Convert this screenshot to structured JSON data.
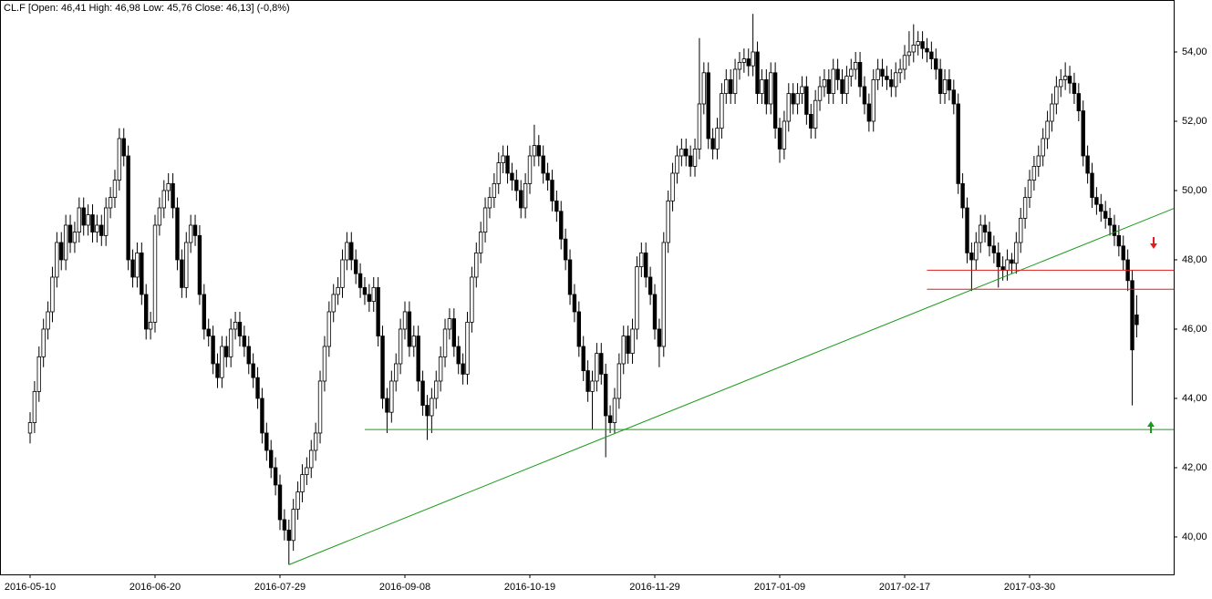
{
  "chart_data": {
    "type": "candlestick",
    "title": "CL.F [Open: 46,41  High: 46,98  Low: 45,76  Close: 46,13]  (-0,8%)",
    "categories": [
      "2016-05-10",
      null,
      null,
      null,
      null,
      null,
      null,
      null,
      null,
      null,
      null,
      null,
      null,
      null,
      null,
      null,
      null,
      null,
      null,
      null,
      null,
      null,
      null,
      null,
      null,
      null,
      null,
      null,
      "2016-06-20",
      null,
      null,
      null,
      null,
      null,
      null,
      null,
      null,
      null,
      null,
      null,
      null,
      null,
      null,
      null,
      null,
      null,
      null,
      null,
      null,
      null,
      null,
      null,
      null,
      null,
      null,
      null,
      "2016-07-29",
      null,
      null,
      null,
      null,
      null,
      null,
      null,
      null,
      null,
      null,
      null,
      null,
      null,
      null,
      null,
      null,
      null,
      null,
      null,
      null,
      null,
      null,
      null,
      null,
      null,
      null,
      null,
      "2016-09-08",
      null,
      null,
      null,
      null,
      null,
      null,
      null,
      null,
      null,
      null,
      null,
      null,
      null,
      null,
      null,
      null,
      null,
      null,
      null,
      null,
      null,
      null,
      null,
      null,
      null,
      null,
      null,
      "2016-10-19",
      null,
      null,
      null,
      null,
      null,
      null,
      null,
      null,
      null,
      null,
      null,
      null,
      null,
      null,
      null,
      null,
      null,
      null,
      null,
      null,
      null,
      null,
      null,
      null,
      null,
      null,
      null,
      "2016-11-29",
      null,
      null,
      null,
      null,
      null,
      null,
      null,
      null,
      null,
      null,
      null,
      null,
      null,
      null,
      null,
      null,
      null,
      null,
      null,
      null,
      null,
      null,
      null,
      null,
      null,
      null,
      null,
      "2017-01-09",
      null,
      null,
      null,
      null,
      null,
      null,
      null,
      null,
      null,
      null,
      null,
      null,
      null,
      null,
      null,
      null,
      null,
      null,
      null,
      null,
      null,
      null,
      null,
      null,
      null,
      null,
      null,
      "2017-02-17",
      null,
      null,
      null,
      null,
      null,
      null,
      null,
      null,
      null,
      null,
      null,
      null,
      null,
      null,
      null,
      null,
      null,
      null,
      null,
      null,
      null,
      null,
      null,
      null,
      null,
      null,
      null,
      "2017-03-30",
      null,
      null,
      null,
      null,
      null,
      null,
      null,
      null,
      null,
      null,
      null,
      null,
      null,
      null,
      null,
      null,
      null,
      null,
      null,
      null,
      null,
      null,
      null,
      null
    ],
    "open": [
      43.0,
      43.3,
      44.2,
      45.2,
      46.0,
      46.5,
      47.5,
      48.5,
      48.0,
      49.0,
      48.5,
      48.8,
      49.5,
      49.0,
      49.3,
      48.8,
      49.0,
      48.7,
      49.5,
      49.8,
      50.3,
      51.5,
      51.0,
      48.0,
      47.5,
      48.2,
      47.0,
      46.0,
      46.2,
      49.0,
      49.5,
      50.0,
      50.2,
      49.5,
      48.0,
      47.2,
      48.5,
      49.0,
      48.7,
      47.0,
      46.0,
      45.8,
      45.0,
      44.6,
      45.5,
      45.2,
      46.0,
      46.2,
      45.8,
      45.5,
      45.0,
      44.6,
      44.0,
      43.0,
      42.5,
      42.0,
      41.5,
      40.5,
      40.2,
      39.9,
      40.8,
      41.3,
      41.8,
      42.0,
      42.5,
      43.0,
      44.5,
      45.5,
      46.5,
      47.0,
      47.2,
      48.0,
      48.5,
      48.0,
      47.6,
      47.2,
      47.0,
      46.8,
      47.2,
      45.8,
      44.0,
      43.6,
      44.5,
      45.0,
      46.0,
      46.5,
      45.5,
      45.8,
      44.5,
      43.8,
      43.5,
      44.0,
      44.5,
      45.2,
      46.0,
      46.3,
      45.5,
      45.0,
      44.7,
      46.2,
      47.5,
      48.2,
      48.8,
      49.5,
      49.8,
      50.2,
      50.8,
      51.0,
      50.5,
      50.3,
      50.0,
      49.5,
      50.2,
      51.0,
      51.3,
      51.0,
      50.5,
      50.3,
      49.7,
      49.4,
      48.6,
      48.0,
      47.0,
      46.5,
      45.5,
      44.8,
      44.2,
      44.5,
      45.3,
      44.7,
      43.5,
      43.3,
      44.0,
      45.0,
      45.8,
      45.3,
      46.0,
      47.8,
      48.2,
      47.5,
      47.0,
      46.0,
      45.5,
      48.5,
      49.7,
      50.5,
      51.0,
      51.2,
      51.0,
      50.7,
      51.2,
      52.5,
      53.4,
      51.5,
      51.2,
      51.8,
      52.8,
      53.2,
      52.8,
      53.5,
      53.7,
      53.8,
      53.6,
      54.0,
      52.8,
      53.2,
      52.5,
      53.4,
      51.8,
      51.2,
      52.0,
      52.8,
      52.5,
      52.8,
      53.0,
      52.2,
      51.8,
      52.6,
      53.0,
      53.2,
      52.8,
      53.5,
      53.2,
      52.8,
      53.3,
      53.5,
      53.7,
      53.0,
      52.5,
      52.0,
      53.2,
      53.5,
      53.3,
      53.2,
      53.0,
      53.4,
      53.5,
      53.9,
      54.0,
      54.2,
      54.3,
      54.1,
      54.0,
      53.8,
      53.5,
      52.8,
      53.2,
      52.9,
      52.5,
      50.2,
      49.5,
      48.2,
      48.0,
      48.5,
      49.0,
      48.8,
      48.4,
      48.2,
      47.8,
      47.7,
      48.0,
      47.9,
      48.5,
      49.2,
      49.8,
      50.3,
      50.7,
      51.0,
      51.5,
      52.0,
      52.5,
      53.0,
      53.2,
      53.3,
      53.1,
      52.8,
      52.3,
      51.0,
      50.5,
      49.8,
      49.6,
      49.4,
      49.2,
      49.0,
      48.7,
      48.4,
      48.0,
      47.4,
      46.41
    ],
    "high": [
      43.6,
      44.5,
      45.5,
      46.3,
      46.8,
      47.8,
      48.8,
      48.8,
      49.3,
      49.3,
      49.1,
      49.8,
      49.8,
      49.6,
      49.6,
      49.3,
      49.3,
      49.8,
      50.1,
      50.6,
      51.8,
      51.8,
      51.3,
      48.3,
      48.5,
      48.5,
      47.3,
      46.5,
      49.3,
      49.8,
      50.3,
      50.5,
      50.5,
      49.8,
      48.3,
      48.8,
      49.3,
      49.3,
      49.0,
      47.3,
      46.3,
      46.1,
      45.3,
      45.8,
      45.8,
      46.3,
      46.5,
      46.5,
      46.1,
      45.8,
      45.3,
      44.9,
      44.3,
      43.3,
      42.8,
      42.3,
      41.8,
      40.8,
      40.5,
      41.1,
      41.6,
      42.1,
      42.3,
      42.8,
      43.3,
      44.8,
      45.8,
      46.8,
      47.3,
      47.5,
      48.3,
      48.8,
      48.8,
      48.3,
      47.9,
      47.5,
      47.3,
      47.5,
      47.5,
      46.1,
      44.3,
      44.8,
      45.3,
      46.3,
      46.8,
      46.8,
      46.1,
      46.1,
      44.8,
      44.1,
      44.3,
      44.8,
      45.5,
      46.3,
      46.6,
      46.6,
      45.8,
      45.3,
      46.5,
      47.8,
      48.5,
      49.1,
      49.8,
      50.1,
      50.5,
      51.1,
      51.3,
      51.3,
      50.8,
      50.6,
      50.3,
      50.5,
      51.3,
      51.9,
      51.6,
      51.3,
      50.8,
      50.6,
      50.0,
      49.7,
      48.9,
      48.3,
      47.3,
      46.8,
      45.8,
      45.1,
      44.8,
      45.6,
      45.6,
      45.0,
      43.8,
      44.3,
      45.3,
      46.1,
      46.1,
      46.3,
      48.1,
      48.5,
      48.5,
      47.8,
      47.3,
      46.3,
      48.8,
      50.0,
      50.8,
      51.3,
      51.5,
      51.5,
      51.3,
      51.5,
      54.4,
      53.7,
      53.7,
      51.8,
      52.1,
      53.1,
      53.5,
      53.5,
      53.8,
      54.0,
      54.1,
      54.1,
      55.1,
      54.3,
      53.5,
      53.5,
      53.7,
      53.7,
      52.1,
      52.3,
      53.1,
      53.1,
      53.1,
      53.3,
      53.3,
      52.5,
      52.9,
      53.3,
      53.5,
      53.5,
      53.8,
      53.8,
      53.5,
      53.6,
      53.8,
      54.0,
      54.0,
      53.3,
      52.8,
      53.5,
      53.8,
      53.8,
      53.6,
      53.5,
      53.7,
      53.8,
      54.2,
      54.6,
      54.8,
      54.6,
      54.6,
      54.4,
      54.3,
      54.1,
      53.8,
      53.5,
      53.5,
      53.2,
      52.8,
      50.5,
      49.8,
      48.5,
      48.8,
      49.3,
      49.3,
      49.1,
      48.7,
      48.5,
      48.1,
      48.3,
      48.2,
      48.8,
      49.5,
      50.1,
      50.6,
      51.0,
      51.3,
      51.8,
      52.3,
      52.8,
      53.3,
      53.5,
      53.7,
      53.6,
      53.4,
      53.1,
      52.6,
      51.3,
      50.8,
      50.1,
      49.9,
      49.7,
      49.5,
      49.3,
      49.0,
      48.7,
      48.3,
      47.7,
      46.98
    ],
    "low": [
      42.7,
      43.0,
      43.9,
      44.9,
      45.7,
      46.2,
      47.2,
      47.7,
      47.7,
      48.2,
      48.2,
      48.5,
      48.7,
      48.7,
      48.5,
      48.5,
      48.4,
      48.4,
      49.2,
      49.5,
      50.0,
      50.7,
      47.7,
      47.2,
      47.2,
      46.7,
      45.7,
      45.7,
      45.9,
      48.7,
      49.2,
      49.7,
      49.2,
      47.7,
      46.9,
      46.9,
      48.2,
      48.4,
      46.7,
      45.7,
      45.5,
      44.7,
      44.3,
      44.3,
      44.9,
      44.9,
      45.7,
      45.5,
      45.2,
      44.7,
      44.3,
      43.7,
      42.7,
      42.2,
      41.7,
      41.2,
      40.2,
      39.9,
      39.2,
      39.6,
      40.5,
      41.0,
      41.5,
      41.7,
      42.2,
      42.7,
      44.2,
      45.2,
      46.2,
      46.7,
      46.9,
      47.7,
      47.7,
      47.3,
      46.9,
      46.7,
      46.5,
      46.5,
      45.5,
      43.7,
      43.0,
      43.3,
      44.2,
      44.7,
      45.7,
      45.2,
      45.2,
      44.2,
      43.5,
      42.8,
      43.0,
      43.7,
      44.2,
      44.9,
      45.7,
      45.2,
      44.7,
      44.4,
      44.4,
      45.9,
      47.2,
      47.9,
      48.5,
      49.2,
      49.5,
      49.9,
      50.5,
      50.2,
      50.0,
      49.7,
      49.2,
      49.2,
      49.9,
      50.7,
      50.7,
      50.2,
      50.0,
      49.4,
      49.1,
      48.3,
      47.7,
      46.7,
      46.2,
      45.2,
      44.5,
      43.9,
      43.1,
      44.2,
      44.4,
      42.3,
      43.0,
      43.0,
      43.7,
      44.7,
      45.0,
      45.0,
      45.7,
      47.5,
      47.2,
      46.7,
      45.7,
      44.9,
      45.2,
      48.2,
      49.4,
      50.2,
      50.7,
      50.7,
      50.4,
      50.4,
      50.9,
      52.2,
      51.2,
      50.9,
      50.9,
      51.5,
      52.5,
      52.5,
      52.5,
      53.2,
      53.4,
      53.3,
      53.3,
      52.5,
      52.5,
      52.2,
      52.2,
      51.5,
      50.8,
      50.9,
      51.7,
      52.2,
      52.2,
      52.5,
      51.9,
      51.5,
      51.5,
      52.3,
      52.7,
      52.5,
      52.5,
      52.9,
      52.5,
      52.5,
      53.0,
      53.2,
      52.7,
      52.2,
      51.7,
      51.7,
      52.9,
      53.0,
      52.9,
      52.7,
      52.7,
      53.1,
      53.2,
      53.6,
      53.7,
      53.9,
      53.8,
      53.7,
      53.5,
      53.2,
      52.5,
      52.5,
      52.6,
      52.2,
      49.9,
      49.2,
      47.9,
      47.1,
      47.7,
      48.2,
      48.5,
      48.1,
      47.9,
      47.2,
      47.4,
      47.4,
      47.6,
      47.6,
      48.2,
      48.9,
      49.5,
      50.0,
      50.4,
      50.7,
      51.2,
      51.7,
      52.2,
      52.7,
      52.9,
      52.8,
      52.5,
      52.0,
      50.7,
      50.2,
      49.5,
      49.3,
      49.1,
      48.9,
      48.7,
      48.4,
      48.1,
      47.7,
      47.1,
      43.8,
      45.76
    ],
    "close": [
      43.3,
      44.2,
      45.2,
      46.0,
      46.5,
      47.5,
      48.5,
      48.0,
      49.0,
      48.5,
      48.8,
      49.5,
      49.0,
      49.3,
      48.8,
      49.0,
      48.7,
      49.5,
      49.8,
      50.3,
      51.5,
      51.0,
      48.0,
      47.5,
      48.2,
      47.0,
      46.0,
      46.2,
      49.0,
      49.5,
      50.0,
      50.2,
      49.5,
      48.0,
      47.2,
      48.5,
      49.0,
      48.7,
      47.0,
      46.0,
      45.8,
      45.0,
      44.6,
      45.5,
      45.2,
      46.0,
      46.2,
      45.8,
      45.5,
      45.0,
      44.6,
      44.0,
      43.0,
      42.5,
      42.0,
      41.5,
      40.5,
      40.2,
      39.9,
      40.8,
      41.3,
      41.8,
      42.0,
      42.5,
      43.0,
      44.5,
      45.5,
      46.5,
      47.0,
      47.2,
      48.0,
      48.5,
      48.0,
      47.6,
      47.2,
      47.0,
      46.8,
      47.2,
      45.8,
      44.0,
      43.6,
      44.5,
      45.0,
      46.0,
      46.5,
      45.5,
      45.8,
      44.5,
      43.8,
      43.5,
      44.0,
      44.5,
      45.2,
      46.0,
      46.3,
      45.5,
      45.0,
      44.7,
      46.2,
      47.5,
      48.2,
      48.8,
      49.5,
      49.8,
      50.2,
      50.8,
      51.0,
      50.5,
      50.3,
      50.0,
      49.5,
      50.2,
      51.0,
      51.3,
      51.0,
      50.5,
      50.3,
      49.7,
      49.4,
      48.6,
      48.0,
      47.0,
      46.5,
      45.5,
      44.8,
      44.2,
      44.5,
      45.3,
      44.7,
      43.5,
      43.3,
      44.0,
      45.0,
      45.8,
      45.3,
      46.0,
      47.8,
      48.2,
      47.5,
      47.0,
      46.0,
      45.5,
      48.5,
      49.7,
      50.5,
      51.0,
      51.2,
      51.0,
      50.7,
      51.2,
      52.5,
      53.4,
      51.5,
      51.2,
      51.8,
      52.8,
      53.2,
      52.8,
      53.5,
      53.7,
      53.8,
      53.6,
      54.0,
      52.8,
      53.2,
      52.5,
      53.4,
      51.8,
      51.2,
      52.0,
      52.8,
      52.5,
      52.8,
      53.0,
      52.2,
      51.8,
      52.6,
      53.0,
      53.2,
      52.8,
      53.5,
      53.2,
      52.8,
      53.3,
      53.5,
      53.7,
      53.0,
      52.5,
      52.0,
      53.2,
      53.5,
      53.3,
      53.2,
      53.0,
      53.4,
      53.5,
      53.9,
      54.0,
      54.2,
      54.3,
      54.1,
      54.0,
      53.8,
      53.5,
      52.8,
      53.2,
      52.9,
      52.5,
      50.2,
      49.5,
      48.2,
      48.0,
      48.5,
      49.0,
      48.8,
      48.4,
      48.2,
      47.8,
      47.7,
      48.0,
      47.9,
      48.5,
      49.2,
      49.8,
      50.3,
      50.7,
      51.0,
      51.5,
      52.0,
      52.5,
      53.0,
      53.2,
      53.3,
      53.1,
      52.8,
      52.3,
      51.0,
      50.5,
      49.8,
      49.6,
      49.4,
      49.2,
      49.0,
      48.7,
      48.4,
      48.0,
      47.4,
      45.4,
      46.13
    ],
    "up_color": "#ffffff",
    "down_color": "#000000",
    "outline_color": "#000000",
    "ylim": [
      38.92,
      55.5
    ],
    "yticks": [
      {
        "value": 40,
        "label": "40,00"
      },
      {
        "value": 42,
        "label": "42,00"
      },
      {
        "value": 44,
        "label": "44,00"
      },
      {
        "value": 46,
        "label": "46,00"
      },
      {
        "value": 48,
        "label": "48,00"
      },
      {
        "value": 50,
        "label": "50,00"
      },
      {
        "value": 52,
        "label": "52,00"
      },
      {
        "value": 54,
        "label": "54,00"
      }
    ],
    "lines": [
      {
        "color": "#1a9a1a",
        "points": [
          [
            58,
            39.2
          ],
          [
            247,
            49.0
          ]
        ]
      },
      {
        "color": "#1a9a1a",
        "points": [
          [
            75,
            43.1
          ],
          [
            248,
            43.1
          ]
        ]
      },
      {
        "color": "#e02020",
        "points": [
          [
            201,
            47.7
          ],
          [
            248,
            47.7
          ]
        ]
      },
      {
        "color": "#e02020",
        "points": [
          [
            201,
            47.15
          ],
          [
            248,
            47.15
          ]
        ]
      }
    ]
  }
}
